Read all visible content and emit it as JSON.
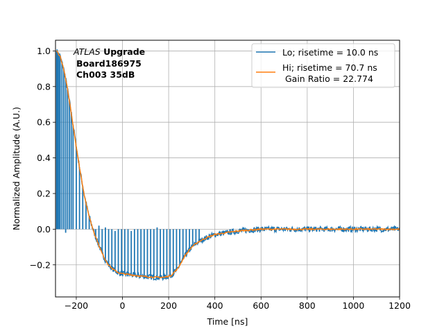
{
  "chart_data": {
    "type": "line",
    "xlabel": "Time [ns]",
    "ylabel": "Normalized Amplitude (A.U.)",
    "xlim": [
      -290,
      1200
    ],
    "ylim": [
      -0.38,
      1.06
    ],
    "xticks": [
      -200,
      0,
      200,
      400,
      600,
      800,
      1000,
      1200
    ],
    "yticks": [
      -0.2,
      0.0,
      0.2,
      0.4,
      0.6,
      0.8,
      1.0
    ],
    "xtick_labels": [
      "−200",
      "0",
      "200",
      "400",
      "600",
      "800",
      "1000",
      "1200"
    ],
    "ytick_labels": [
      "−0.2",
      "0.0",
      "0.2",
      "0.4",
      "0.6",
      "0.8",
      "1.0"
    ],
    "grid": true,
    "legend_position": "top-right",
    "annotation": {
      "line1_italic": "ATLAS",
      "line1_bold": " Upgrade",
      "line2": "Board186975",
      "line3": "Ch003 35dB"
    },
    "series": [
      {
        "name": "Lo; risetime = 10.0 ns",
        "color": "#1f77b4",
        "x": [
          -285,
          -270,
          -255,
          -240,
          -225,
          -210,
          -195,
          -180,
          -165,
          -150,
          -135,
          -120,
          -105,
          -90,
          -75,
          -60,
          -45,
          -30,
          -15,
          0,
          30,
          60,
          90,
          120,
          150,
          180,
          210,
          240,
          270,
          300,
          330,
          360,
          400,
          450,
          500,
          550,
          600,
          700,
          800,
          900,
          1000,
          1100,
          1200
        ],
        "y": [
          1.0,
          0.97,
          0.9,
          0.8,
          0.68,
          0.55,
          0.42,
          0.3,
          0.19,
          0.1,
          0.03,
          -0.03,
          -0.08,
          -0.13,
          -0.17,
          -0.2,
          -0.22,
          -0.235,
          -0.245,
          -0.25,
          -0.255,
          -0.26,
          -0.265,
          -0.268,
          -0.27,
          -0.27,
          -0.26,
          -0.22,
          -0.15,
          -0.1,
          -0.07,
          -0.05,
          -0.03,
          -0.02,
          -0.01,
          -0.005,
          0.0,
          0.0,
          0.0,
          0.0,
          0.0,
          0.0,
          0.0
        ]
      },
      {
        "name": "Hi; risetime = 70.7 ns\n Gain Ratio = 22.774",
        "color": "#ff7f0e",
        "x": [
          -285,
          -270,
          -255,
          -240,
          -225,
          -210,
          -195,
          -180,
          -165,
          -150,
          -135,
          -120,
          -105,
          -90,
          -75,
          -60,
          -45,
          -30,
          -15,
          0,
          30,
          60,
          90,
          120,
          150,
          180,
          210,
          240,
          270,
          300,
          330,
          360,
          400,
          450,
          500,
          550,
          600,
          700,
          800,
          900,
          1000,
          1100,
          1200
        ],
        "y": [
          1.0,
          0.97,
          0.9,
          0.8,
          0.68,
          0.55,
          0.42,
          0.3,
          0.19,
          0.1,
          0.03,
          -0.03,
          -0.08,
          -0.13,
          -0.17,
          -0.2,
          -0.22,
          -0.235,
          -0.245,
          -0.25,
          -0.255,
          -0.26,
          -0.265,
          -0.268,
          -0.27,
          -0.27,
          -0.26,
          -0.22,
          -0.15,
          -0.1,
          -0.07,
          -0.05,
          -0.03,
          -0.02,
          -0.01,
          -0.005,
          0.0,
          0.0,
          0.0,
          0.0,
          0.0,
          0.0,
          0.0
        ]
      }
    ],
    "lo_spikes": {
      "x": [
        -285,
        -280,
        -275,
        -270,
        -262,
        -254,
        -246,
        -238,
        -230,
        -222,
        -214,
        -200,
        -186,
        -172,
        -158,
        -144,
        -130,
        -116,
        -102,
        -88,
        -74,
        -60,
        -46,
        -32,
        -18,
        -4,
        10,
        24,
        38,
        52,
        66,
        80,
        94,
        108,
        122,
        136,
        150,
        164,
        178,
        192,
        206,
        220,
        234,
        248,
        262,
        276,
        290,
        304,
        318,
        332
      ],
      "y": [
        0.0,
        0.0,
        0.0,
        0.0,
        0.0,
        0.0,
        -0.02,
        0.0,
        0.0,
        0.0,
        0.0,
        0.0,
        0.0,
        0.0,
        0.0,
        0.0,
        0.0,
        0.0,
        0.02,
        0.0,
        0.01,
        0.0,
        0.0,
        -0.01,
        0.0,
        0.0,
        0.0,
        0.0,
        -0.01,
        0.0,
        0.0,
        0.0,
        0.0,
        0.0,
        0.0,
        0.0,
        0.01,
        0.0,
        0.0,
        0.0,
        0.0,
        0.0,
        0.0,
        0.0,
        0.0,
        0.0,
        0.0,
        0.0,
        0.0,
        0.0
      ]
    }
  }
}
